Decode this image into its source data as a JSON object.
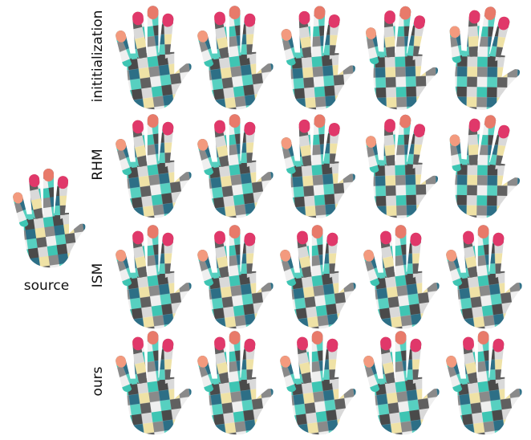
{
  "source_label": "source",
  "rows": [
    {
      "label": "inititialization"
    },
    {
      "label": "RHM"
    },
    {
      "label": "ISM"
    },
    {
      "label": "ours"
    }
  ]
}
